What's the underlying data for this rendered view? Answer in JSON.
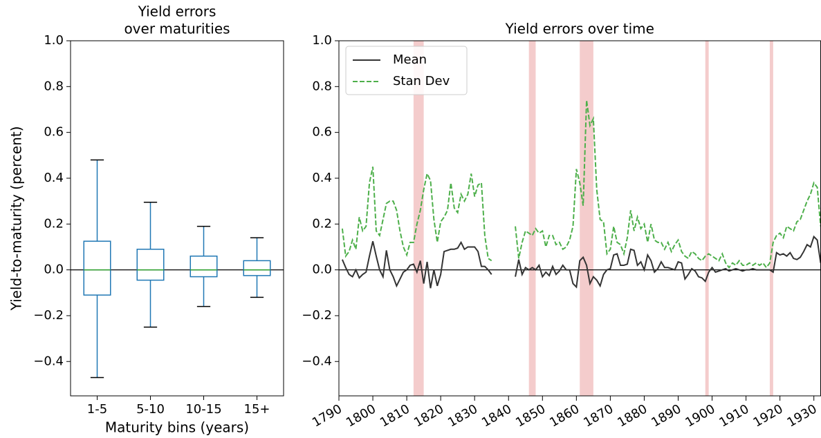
{
  "chart_data": [
    {
      "type": "box",
      "title": [
        "Yield errors",
        "over maturities"
      ],
      "ylabel": "Yield-to-maturity (percent)",
      "xlabel": "Maturity bins (years)",
      "categories": [
        "1-5",
        "5-10",
        "10-15",
        "15+"
      ],
      "boxes": [
        {
          "min": -0.47,
          "q1": -0.11,
          "median": 0.0,
          "q3": 0.125,
          "max": 0.48
        },
        {
          "min": -0.25,
          "q1": -0.045,
          "median": 0.0,
          "q3": 0.09,
          "max": 0.295
        },
        {
          "min": -0.16,
          "q1": -0.03,
          "median": 0.0,
          "q3": 0.06,
          "max": 0.19
        },
        {
          "min": -0.12,
          "q1": -0.025,
          "median": 0.0,
          "q3": 0.04,
          "max": 0.14
        }
      ],
      "color": "#1f77b4",
      "median_color": "#2ca02c",
      "hline": 0,
      "ylim": [
        -0.55,
        1.0
      ],
      "yticks": [
        {
          "value": -0.4,
          "label": "−0.4"
        },
        {
          "value": -0.2,
          "label": "−0.2"
        },
        {
          "value": 0.0,
          "label": "0.0"
        },
        {
          "value": 0.2,
          "label": "0.2"
        },
        {
          "value": 0.4,
          "label": "0.4"
        },
        {
          "value": 0.6,
          "label": "0.6"
        },
        {
          "value": 0.8,
          "label": "0.8"
        },
        {
          "value": 1.0,
          "label": "1.0"
        }
      ]
    },
    {
      "type": "line",
      "title": "Yield errors over time",
      "x": [
        1791,
        1792,
        1793,
        1794,
        1795,
        1796,
        1797,
        1798,
        1799,
        1800,
        1801,
        1802,
        1803,
        1804,
        1805,
        1806,
        1807,
        1808,
        1809,
        1810,
        1811,
        1812,
        1813,
        1814,
        1815,
        1816,
        1817,
        1818,
        1819,
        1820,
        1821,
        1822,
        1823,
        1824,
        1825,
        1826,
        1827,
        1828,
        1829,
        1830,
        1831,
        1832,
        1833,
        1834,
        1835,
        1836,
        1837,
        1838,
        1839,
        1840,
        1841,
        1842,
        1843,
        1844,
        1845,
        1846,
        1847,
        1848,
        1849,
        1850,
        1851,
        1852,
        1853,
        1854,
        1855,
        1856,
        1857,
        1858,
        1859,
        1860,
        1861,
        1862,
        1863,
        1864,
        1865,
        1866,
        1867,
        1868,
        1869,
        1870,
        1871,
        1872,
        1873,
        1874,
        1875,
        1876,
        1877,
        1878,
        1879,
        1880,
        1881,
        1882,
        1883,
        1884,
        1885,
        1886,
        1887,
        1888,
        1889,
        1890,
        1891,
        1892,
        1893,
        1894,
        1895,
        1896,
        1897,
        1898,
        1899,
        1900,
        1901,
        1902,
        1903,
        1904,
        1905,
        1906,
        1907,
        1908,
        1909,
        1910,
        1911,
        1912,
        1913,
        1914,
        1915,
        1916,
        1917,
        1918,
        1919,
        1920,
        1921,
        1922,
        1923,
        1924,
        1925,
        1926,
        1927,
        1928,
        1929,
        1930,
        1931,
        1932
      ],
      "series": [
        {
          "name": "Mean",
          "color": "#333333",
          "linestyle": "solid",
          "values": [
            0.045,
            0.01,
            -0.02,
            -0.03,
            0.0,
            -0.035,
            -0.02,
            -0.01,
            0.06,
            0.125,
            0.06,
            0.0,
            -0.03,
            0.085,
            0.0,
            -0.03,
            -0.07,
            -0.04,
            -0.01,
            0.0,
            0.02,
            0.025,
            -0.01,
            0.04,
            -0.06,
            0.035,
            -0.08,
            0.0,
            -0.07,
            -0.02,
            0.08,
            0.085,
            0.09,
            0.09,
            0.095,
            0.12,
            0.09,
            0.1,
            0.1,
            0.1,
            0.08,
            0.015,
            0.015,
            0.0,
            -0.02,
            null,
            null,
            null,
            null,
            null,
            null,
            -0.03,
            0.045,
            -0.02,
            0.01,
            0.0,
            0.01,
            0.0,
            0.02,
            -0.03,
            -0.01,
            -0.025,
            0.015,
            -0.02,
            -0.005,
            0.02,
            0.0,
            0.0,
            -0.06,
            -0.075,
            0.04,
            0.055,
            0.02,
            -0.06,
            -0.03,
            -0.045,
            -0.07,
            -0.02,
            0.0,
            0.005,
            0.065,
            0.07,
            0.02,
            0.02,
            0.025,
            0.09,
            0.085,
            0.02,
            0.035,
            0.0,
            0.065,
            0.04,
            -0.01,
            0.005,
            0.035,
            0.01,
            0.01,
            0.005,
            0.0,
            0.035,
            0.03,
            -0.04,
            -0.02,
            0.005,
            -0.005,
            -0.03,
            -0.035,
            -0.05,
            -0.01,
            0.01,
            -0.01,
            -0.005,
            0.0,
            0.005,
            -0.005,
            0.0,
            0.005,
            0.0,
            -0.005,
            0.0,
            0.0,
            0.005,
            0.0,
            0.0,
            0.0,
            0.0,
            0.0,
            -0.01,
            0.075,
            0.065,
            0.07,
            0.06,
            0.075,
            0.05,
            0.045,
            0.055,
            0.08,
            0.11,
            0.1,
            0.145,
            0.13,
            0.03
          ]
        },
        {
          "name": "Stan Dev",
          "color": "#4daf4a",
          "linestyle": "dashed",
          "values": [
            0.18,
            0.06,
            0.08,
            0.13,
            0.09,
            0.23,
            0.17,
            0.19,
            0.38,
            0.45,
            0.17,
            0.15,
            0.22,
            0.29,
            0.3,
            0.3,
            0.26,
            0.17,
            0.1,
            0.065,
            0.12,
            0.12,
            0.2,
            0.26,
            0.35,
            0.42,
            0.39,
            0.22,
            0.12,
            0.21,
            0.23,
            0.26,
            0.38,
            0.27,
            0.25,
            0.33,
            0.3,
            0.33,
            0.42,
            0.32,
            0.37,
            0.38,
            0.15,
            0.05,
            0.04,
            null,
            null,
            null,
            null,
            null,
            null,
            0.19,
            0.05,
            0.12,
            0.17,
            0.16,
            0.15,
            0.18,
            0.16,
            0.17,
            0.1,
            0.15,
            0.15,
            0.11,
            0.12,
            0.09,
            0.1,
            0.13,
            0.19,
            0.44,
            0.38,
            0.28,
            0.74,
            0.63,
            0.66,
            0.35,
            0.22,
            0.21,
            0.07,
            0.09,
            0.19,
            0.12,
            0.11,
            0.07,
            0.14,
            0.26,
            0.17,
            0.23,
            0.18,
            0.2,
            0.12,
            0.2,
            0.13,
            0.12,
            0.12,
            0.09,
            0.12,
            0.08,
            0.11,
            0.13,
            0.08,
            0.06,
            0.05,
            0.08,
            0.07,
            0.05,
            0.04,
            0.06,
            0.07,
            0.06,
            0.05,
            0.04,
            0.07,
            0.03,
            0.01,
            0.03,
            0.02,
            0.04,
            0.02,
            0.02,
            0.03,
            0.02,
            0.03,
            0.02,
            0.03,
            0.01,
            0.03,
            0.12,
            0.15,
            0.16,
            0.14,
            0.19,
            0.18,
            0.17,
            0.21,
            0.22,
            0.26,
            0.3,
            0.33,
            0.38,
            0.36,
            0.19
          ]
        }
      ],
      "shaded_spans": [
        [
          1812,
          1815
        ],
        [
          1846,
          1848
        ],
        [
          1861,
          1865
        ],
        [
          1898,
          1899
        ],
        [
          1917,
          1918
        ]
      ],
      "span_color": "#f4cccc",
      "hline": 0,
      "legend": "upper left",
      "xlim": [
        1790,
        1932
      ],
      "xticks": [
        1790,
        1800,
        1810,
        1820,
        1830,
        1840,
        1850,
        1860,
        1870,
        1880,
        1890,
        1900,
        1910,
        1920,
        1930
      ],
      "ylim": [
        -0.55,
        1.0
      ],
      "yticks": [
        {
          "value": -0.4,
          "label": "−0.4"
        },
        {
          "value": -0.2,
          "label": "−0.2"
        },
        {
          "value": 0.0,
          "label": "0.0"
        },
        {
          "value": 0.2,
          "label": "0.2"
        },
        {
          "value": 0.4,
          "label": "0.4"
        },
        {
          "value": 0.6,
          "label": "0.6"
        },
        {
          "value": 0.8,
          "label": "0.8"
        },
        {
          "value": 1.0,
          "label": "1.0"
        }
      ]
    }
  ]
}
